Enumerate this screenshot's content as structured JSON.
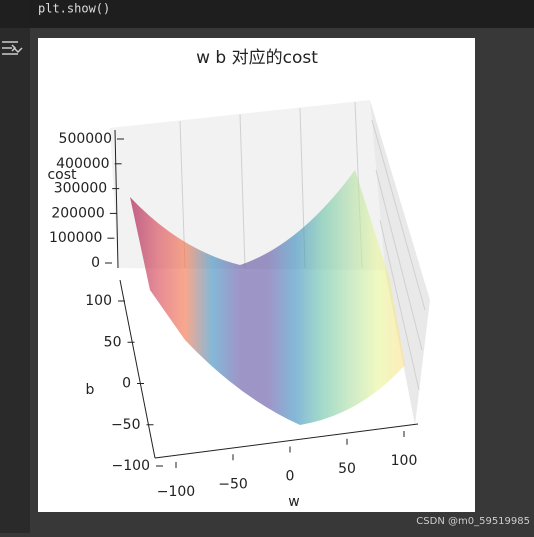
{
  "code": "plt.show()",
  "footer": "CSDN @m0_59519985",
  "chart_data": {
    "type": "surface",
    "title": "w b 对应的cost",
    "xlabel": "w",
    "ylabel": "b",
    "zlabel": "cost",
    "xticks": [
      {
        "value": -100,
        "label": "−100"
      },
      {
        "value": -50,
        "label": "−50"
      },
      0,
      50,
      100
    ],
    "yticks": [
      {
        "value": -100,
        "label": "−100"
      },
      {
        "value": -50,
        "label": "−50"
      },
      0,
      50,
      100
    ],
    "zticks": [
      0,
      100000,
      200000,
      300000,
      400000,
      500000
    ],
    "cmap": "Spectral",
    "alpha": 0.6
  }
}
